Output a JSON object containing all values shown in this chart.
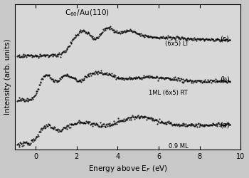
{
  "title_main": "C",
  "title_sub": "60",
  "title_rest": "/Au(110)",
  "xlabel": "Energy above E",
  "xlabel_sub": "F",
  "xlabel_units": "(eV)",
  "ylabel": "Intensity (arb. units)",
  "xlim": [
    -1,
    10
  ],
  "xticks": [
    0,
    2,
    4,
    6,
    8,
    10
  ],
  "labels": {
    "c": "(c)",
    "c_sub": "(6x5) LT",
    "b": "(b)",
    "b_sub": "1ML (6x5) RT",
    "a": "(a)",
    "a_sub": "0.9 ML"
  },
  "offsets": {
    "a": 0.0,
    "b": 0.3,
    "c": 0.6
  },
  "bg_color": "#d8d8d8",
  "fig_bg": "#c8c8c8"
}
